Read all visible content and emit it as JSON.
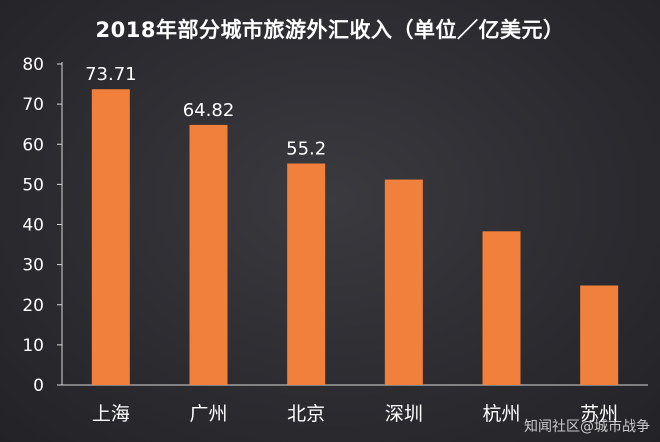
{
  "chart_data": {
    "type": "bar",
    "title": "2018年部分城市旅游外汇收入（单位／亿美元）",
    "categories": [
      "上海",
      "广州",
      "北京",
      "深圳",
      "杭州",
      "苏州"
    ],
    "values": [
      73.71,
      64.82,
      55.2,
      51.2,
      38.3,
      24.8
    ],
    "data_labels": [
      "73.71",
      "64.82",
      "55.2",
      "",
      "",
      ""
    ],
    "ylim": [
      0,
      80
    ],
    "yticks": [
      0,
      10,
      20,
      30,
      40,
      50,
      60,
      70,
      80
    ],
    "grid": false,
    "colors": {
      "bar": "#f0803c",
      "axis": "#d8d8d8",
      "background": "#2b2b30"
    }
  },
  "watermark": "知闻社区@城市战争"
}
